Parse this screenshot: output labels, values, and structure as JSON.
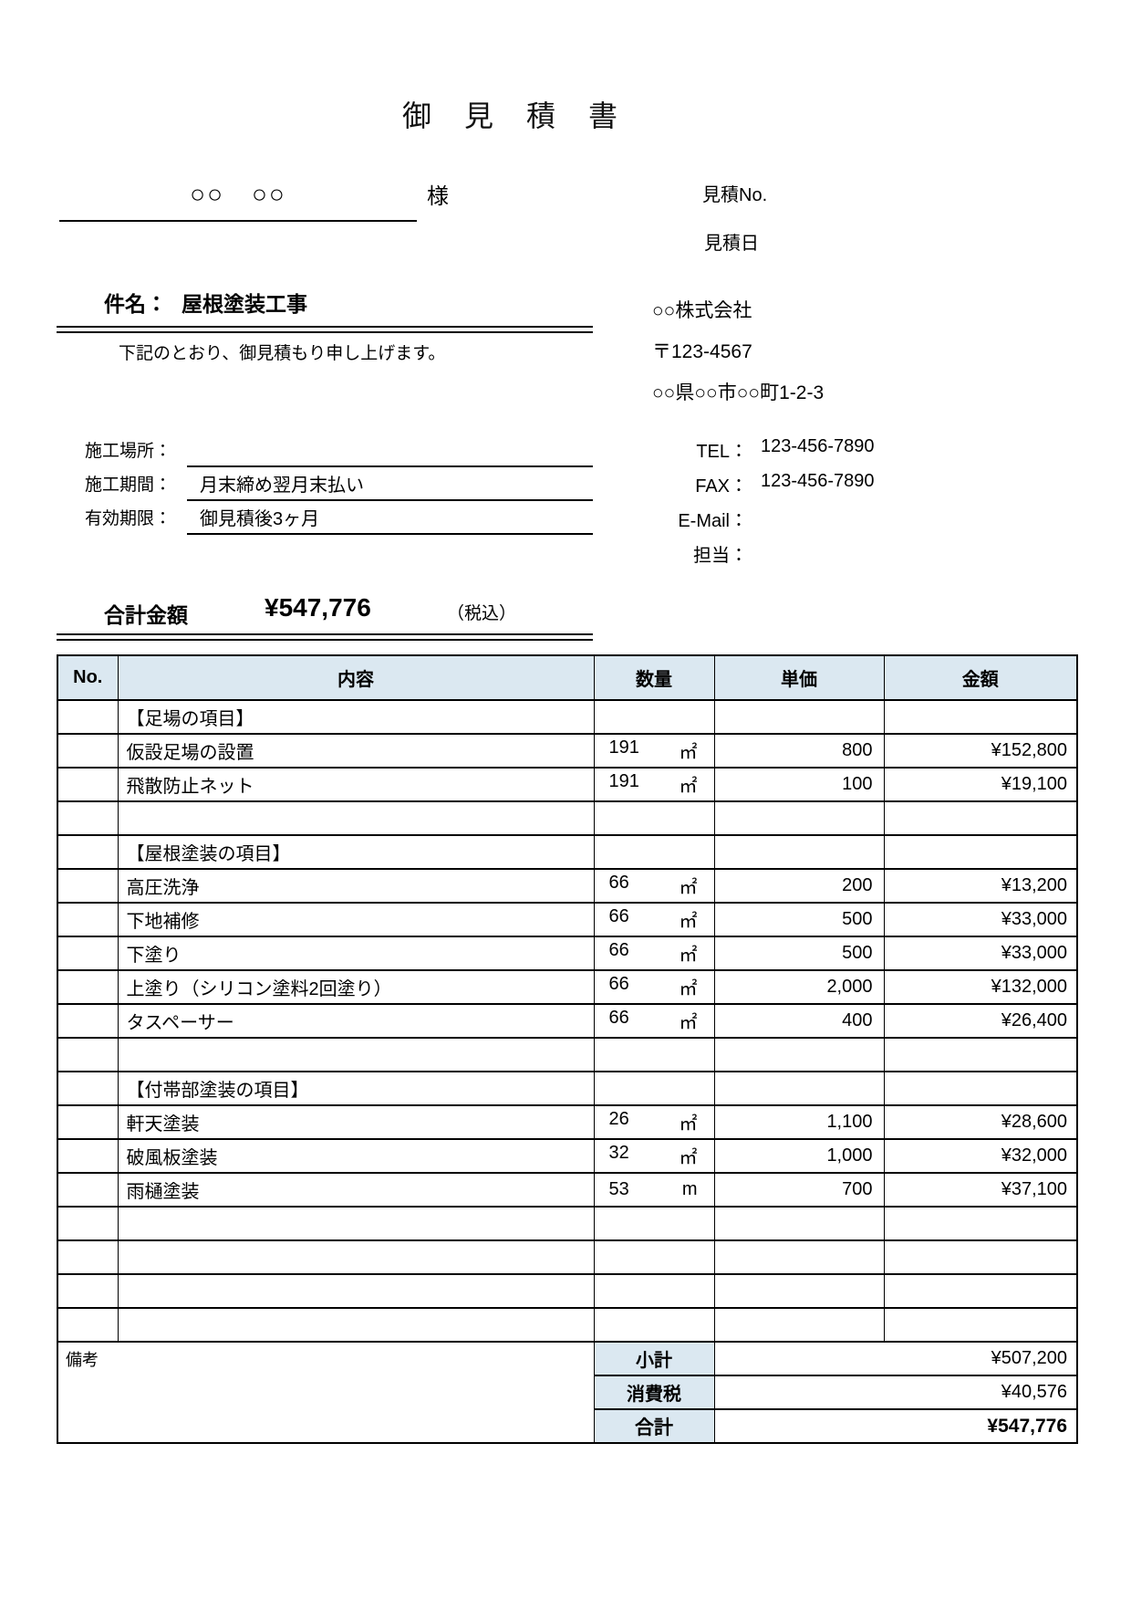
{
  "document": {
    "title": "御　見　積　書",
    "recipient": {
      "name": "○○　○○",
      "honorific": "様"
    },
    "meta": {
      "estimate_no_label": "見積No.",
      "estimate_date_label": "見積日"
    },
    "subject": {
      "label": "件名：",
      "value": "屋根塗装工事",
      "greeting": "下記のとおり、御見積もり申し上げます。"
    },
    "issuer": {
      "company": "○○株式会社",
      "postal": "〒123-4567",
      "address": "○○県○○市○○町1-2-3",
      "contacts": [
        {
          "label": "TEL：",
          "value": "123-456-7890"
        },
        {
          "label": "FAX：",
          "value": "123-456-7890"
        },
        {
          "label": "E-Mail：",
          "value": ""
        },
        {
          "label": "担当：",
          "value": ""
        }
      ]
    },
    "fields": [
      {
        "label": "施工場所：",
        "value": ""
      },
      {
        "label": "施工期間：",
        "value": "月末締め翌月末払い"
      },
      {
        "label": "有効期限：",
        "value": "御見積後3ヶ月"
      }
    ],
    "grand_total": {
      "label": "合計金額",
      "amount": "¥547,776",
      "note": "（税込）"
    }
  },
  "table": {
    "columns": [
      "No.",
      "内容",
      "数量",
      "単価",
      "金額"
    ],
    "rows": [
      {
        "type": "section",
        "no": "",
        "description": "【足場の項目】",
        "qty": "",
        "unit": "",
        "unit_price": "",
        "amount": ""
      },
      {
        "type": "item",
        "no": "",
        "description": "仮設足場の設置",
        "qty": "191",
        "unit": "㎡",
        "unit_price": "800",
        "amount": "¥152,800"
      },
      {
        "type": "item",
        "no": "",
        "description": "飛散防止ネット",
        "qty": "191",
        "unit": "㎡",
        "unit_price": "100",
        "amount": "¥19,100"
      },
      {
        "type": "blank",
        "no": "",
        "description": "",
        "qty": "",
        "unit": "",
        "unit_price": "",
        "amount": ""
      },
      {
        "type": "section",
        "no": "",
        "description": "【屋根塗装の項目】",
        "qty": "",
        "unit": "",
        "unit_price": "",
        "amount": ""
      },
      {
        "type": "item",
        "no": "",
        "description": "高圧洗浄",
        "qty": "66",
        "unit": "㎡",
        "unit_price": "200",
        "amount": "¥13,200"
      },
      {
        "type": "item",
        "no": "",
        "description": "下地補修",
        "qty": "66",
        "unit": "㎡",
        "unit_price": "500",
        "amount": "¥33,000"
      },
      {
        "type": "item",
        "no": "",
        "description": "下塗り",
        "qty": "66",
        "unit": "㎡",
        "unit_price": "500",
        "amount": "¥33,000"
      },
      {
        "type": "item",
        "no": "",
        "description": "上塗り（シリコン塗料2回塗り）",
        "qty": "66",
        "unit": "㎡",
        "unit_price": "2,000",
        "amount": "¥132,000"
      },
      {
        "type": "item",
        "no": "",
        "description": "タスペーサー",
        "qty": "66",
        "unit": "㎡",
        "unit_price": "400",
        "amount": "¥26,400"
      },
      {
        "type": "blank",
        "no": "",
        "description": "",
        "qty": "",
        "unit": "",
        "unit_price": "",
        "amount": ""
      },
      {
        "type": "section",
        "no": "",
        "description": "【付帯部塗装の項目】",
        "qty": "",
        "unit": "",
        "unit_price": "",
        "amount": ""
      },
      {
        "type": "item",
        "no": "",
        "description": "軒天塗装",
        "qty": "26",
        "unit": "㎡",
        "unit_price": "1,100",
        "amount": "¥28,600"
      },
      {
        "type": "item",
        "no": "",
        "description": "破風板塗装",
        "qty": "32",
        "unit": "㎡",
        "unit_price": "1,000",
        "amount": "¥32,000"
      },
      {
        "type": "item",
        "no": "",
        "description": "雨樋塗装",
        "qty": "53",
        "unit": "m",
        "unit_price": "700",
        "amount": "¥37,100"
      },
      {
        "type": "blank",
        "no": "",
        "description": "",
        "qty": "",
        "unit": "",
        "unit_price": "",
        "amount": ""
      },
      {
        "type": "blank",
        "no": "",
        "description": "",
        "qty": "",
        "unit": "",
        "unit_price": "",
        "amount": ""
      },
      {
        "type": "blank",
        "no": "",
        "description": "",
        "qty": "",
        "unit": "",
        "unit_price": "",
        "amount": ""
      },
      {
        "type": "blank",
        "no": "",
        "description": "",
        "qty": "",
        "unit": "",
        "unit_price": "",
        "amount": ""
      }
    ],
    "remarks_label": "備考",
    "totals": [
      {
        "label": "小計",
        "value": "¥507,200",
        "bold": false
      },
      {
        "label": "消費税",
        "value": "¥40,576",
        "bold": false
      },
      {
        "label": "合計",
        "value": "¥547,776",
        "bold": true
      }
    ]
  },
  "colors": {
    "table_header_bg": "#dbe8f1",
    "border": "#000000"
  }
}
